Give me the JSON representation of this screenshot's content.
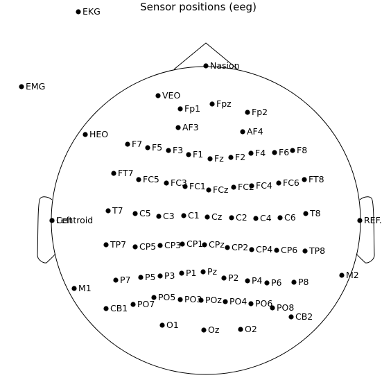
{
  "title": "Sensor positions (eeg)",
  "colors": {
    "dot": "#000000",
    "outline": "#000000",
    "text": "#000000"
  },
  "sensors": [
    "EKG",
    "EMG",
    "Nasion",
    "VEO",
    "Fp1",
    "Fpz",
    "Fp2",
    "HEO",
    "AF3",
    "AF4",
    "F7",
    "F5",
    "F3",
    "F1",
    "Fz",
    "F2",
    "F4",
    "F6",
    "F8",
    "FT7",
    "FC5",
    "FC3",
    "FC1",
    "FCz",
    "FC2",
    "FC4",
    "FC6",
    "FT8",
    "Left",
    "Centroid",
    "T7",
    "C5",
    "C3",
    "C1",
    "Cz",
    "C2",
    "C4",
    "C6",
    "T8",
    "REF.",
    "TP7",
    "CP5",
    "CP3",
    "CP1",
    "CPz",
    "CP2",
    "CP4",
    "CP6",
    "TP8",
    "M1",
    "M2",
    "P7",
    "P5",
    "P3",
    "P1",
    "Pz",
    "P2",
    "P4",
    "P6",
    "P8",
    "PO5",
    "PO3",
    "POz",
    "PO4",
    "PO6",
    "CB1",
    "PO7",
    "PO8",
    "CB2",
    "O1",
    "Oz",
    "O2"
  ]
}
